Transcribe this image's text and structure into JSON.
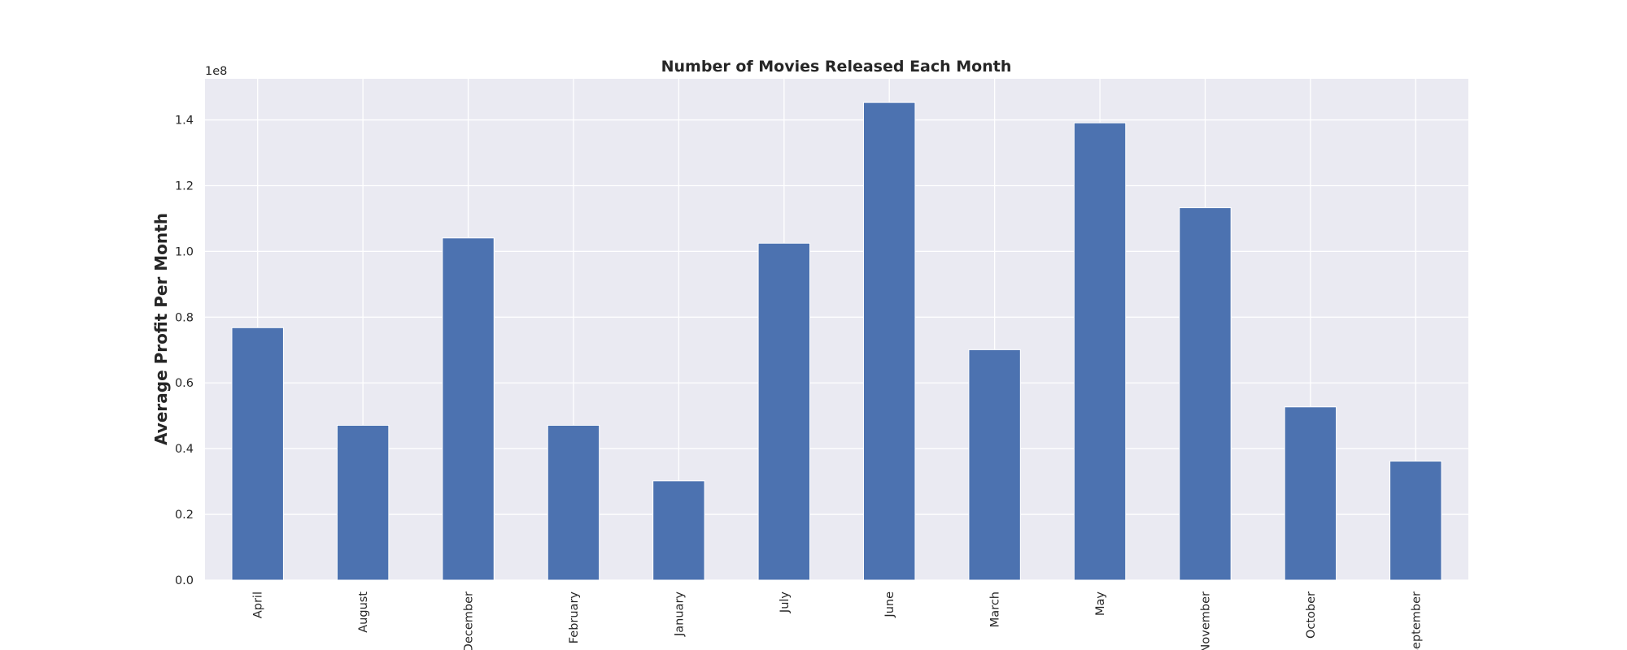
{
  "chart_data": {
    "type": "bar",
    "title": "Number of Movies Released Each Month",
    "xlabel": "",
    "ylabel": "Average Profit Per Month",
    "offset_label": "1e8",
    "categories": [
      "April",
      "August",
      "December",
      "February",
      "January",
      "July",
      "June",
      "March",
      "May",
      "November",
      "October",
      "September"
    ],
    "values": [
      76800000,
      47100000,
      104100000,
      47100000,
      30200000,
      102500000,
      145300000,
      70100000,
      139100000,
      113300000,
      52700000,
      36200000
    ],
    "ylim": [
      0,
      152500000
    ],
    "yticks": [
      0,
      20000000,
      40000000,
      60000000,
      80000000,
      100000000,
      120000000,
      140000000
    ],
    "ytick_labels": [
      "0.0",
      "0.2",
      "0.4",
      "0.6",
      "0.8",
      "1.0",
      "1.2",
      "1.4"
    ],
    "grid": true,
    "legend": "none",
    "colors": {
      "bar": "#4c72b0",
      "plot_bg": "#eaeaf2",
      "grid": "#ffffff",
      "text": "#262626"
    }
  }
}
